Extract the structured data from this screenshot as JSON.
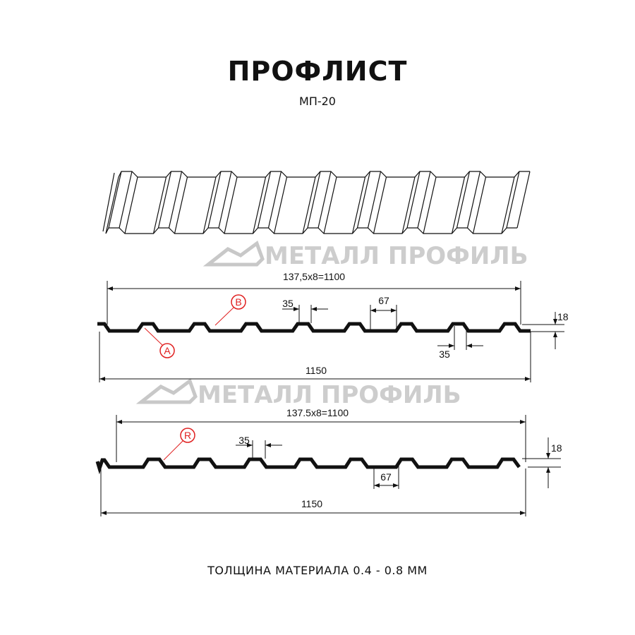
{
  "header": {
    "title": "ПРОФЛИСТ",
    "subtitle": "МП-20"
  },
  "watermark": {
    "text": "МЕТАЛЛ ПРОФИЛЬ",
    "color": "#bdbdbd"
  },
  "profile_a": {
    "span_label": "137,5x8=1100",
    "total_label": "1150",
    "top_width_label": "35",
    "bottom_width_label": "35",
    "pitch_label": "67",
    "height_label": "18",
    "callouts": [
      "A",
      "B"
    ]
  },
  "profile_b": {
    "span_label": "137.5x8=1100",
    "total_label": "1150",
    "top_width_label": "35",
    "pitch_label": "67",
    "height_label": "18",
    "callouts": [
      "R"
    ]
  },
  "footer": {
    "thickness": "ТОЛЩИНА МАТЕРИАЛА 0.4 - 0.8 ММ"
  },
  "colors": {
    "line": "#111111",
    "callout": "#e02020"
  }
}
